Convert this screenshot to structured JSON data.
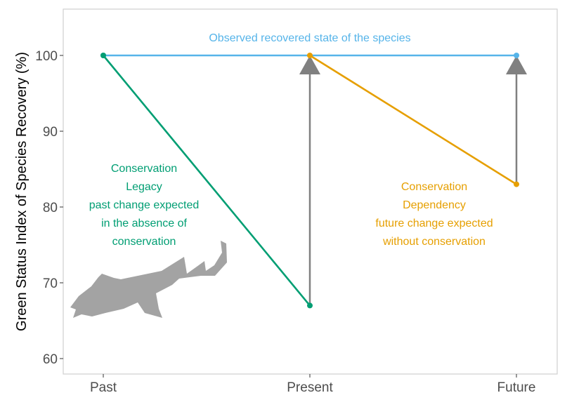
{
  "chart_data": {
    "type": "line",
    "categories": [
      "Past",
      "Present",
      "Future"
    ],
    "ylabel": "Green Status Index of Species Recovery (%)",
    "xlabel": "",
    "ylim": [
      58,
      105
    ],
    "yticks": [
      60,
      70,
      80,
      90,
      100
    ],
    "grid": false,
    "series": [
      {
        "name": "Observed recovered state of the species",
        "color": "#56B4E9",
        "points": [
          [
            "Past",
            100
          ],
          [
            "Future",
            100
          ]
        ]
      },
      {
        "name": "Conservation Legacy",
        "color": "#009E73",
        "points": [
          [
            "Past",
            100
          ],
          [
            "Present",
            67
          ]
        ]
      },
      {
        "name": "Conservation Dependency",
        "color": "#E69F00",
        "points": [
          [
            "Present",
            100
          ],
          [
            "Future",
            83
          ]
        ]
      }
    ],
    "arrows": [
      {
        "x": "Present",
        "from": 67,
        "to": 100,
        "color": "#808080"
      },
      {
        "x": "Future",
        "from": 83,
        "to": 100,
        "color": "#808080"
      }
    ],
    "annotations": [
      {
        "lines": [
          "Observed recovered state of the species"
        ],
        "color": "#56B4E9"
      },
      {
        "lines": [
          "Conservation",
          "Legacy",
          "past change expected",
          "in the absence of",
          "conservation"
        ],
        "color": "#009E73"
      },
      {
        "lines": [
          "Conservation",
          "Dependency",
          "future change expected",
          "without conservation"
        ],
        "color": "#E69F00"
      }
    ]
  }
}
